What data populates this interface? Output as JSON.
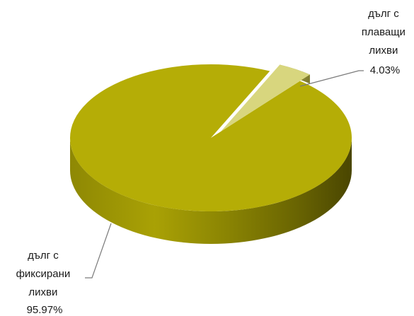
{
  "chart_data": {
    "type": "pie",
    "style": "3d",
    "title": "",
    "slices": [
      {
        "label": "дълг с фиксирани лихви",
        "label_lines": [
          "дълг с",
          "фиксирани",
          "лихви"
        ],
        "value": 95.97,
        "value_label": "95.97%",
        "color": "#b5ad06",
        "side_color": "#8a8404"
      },
      {
        "label": "дълг с плаващи лихви",
        "label_lines": [
          "дълг с",
          "плаващи",
          "лихви"
        ],
        "value": 4.03,
        "value_label": "4.03%",
        "color": "#d8d67e",
        "side_color": "#a9a54e",
        "exploded": true
      }
    ],
    "legend": "none",
    "leader_lines": true
  }
}
